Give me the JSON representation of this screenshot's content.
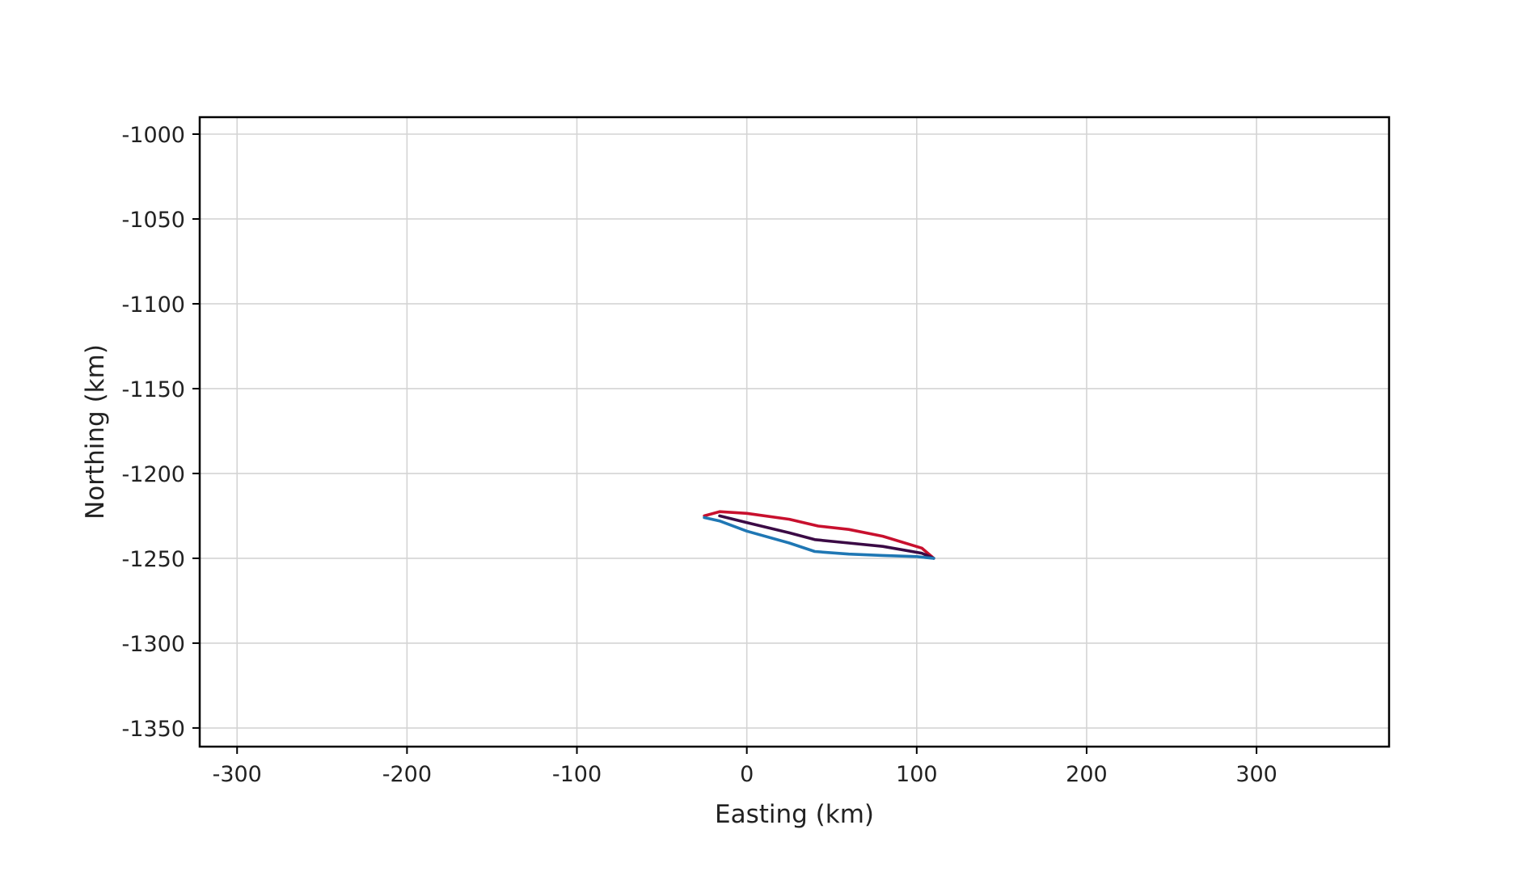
{
  "chart_data": {
    "type": "line",
    "title": "",
    "xlabel": "Easting (km)",
    "ylabel": "Northing (km)",
    "xlim": [
      -322,
      378
    ],
    "ylim": [
      -1361,
      -990
    ],
    "xticks": [
      -300,
      -200,
      -100,
      0,
      100,
      200,
      300
    ],
    "xtick_labels": [
      "-300",
      "-200",
      "-100",
      "0",
      "100",
      "200",
      "300"
    ],
    "yticks": [
      -1000,
      -1050,
      -1100,
      -1150,
      -1200,
      -1250,
      -1300,
      -1350
    ],
    "ytick_labels": [
      "-1000",
      "-1050",
      "-1100",
      "-1150",
      "-1200",
      "-1250",
      "-1300",
      "-1350"
    ],
    "grid": true,
    "legend": "none",
    "series": [
      {
        "color": "#c8102e",
        "points": [
          [
            -25,
            -1225
          ],
          [
            -16,
            -1222.5
          ],
          [
            0,
            -1223.5
          ],
          [
            25,
            -1227
          ],
          [
            42,
            -1231
          ],
          [
            60,
            -1233
          ],
          [
            80,
            -1237
          ],
          [
            103,
            -1244
          ],
          [
            110,
            -1250
          ]
        ]
      },
      {
        "color": "#3b0a45",
        "points": [
          [
            -16,
            -1225
          ],
          [
            0,
            -1229
          ],
          [
            25,
            -1235
          ],
          [
            40,
            -1239
          ],
          [
            60,
            -1241
          ],
          [
            80,
            -1243
          ],
          [
            103,
            -1247
          ],
          [
            110,
            -1250
          ]
        ]
      },
      {
        "color": "#1f77b4",
        "points": [
          [
            -25,
            -1226
          ],
          [
            -16,
            -1228
          ],
          [
            0,
            -1234
          ],
          [
            25,
            -1241
          ],
          [
            40,
            -1246
          ],
          [
            60,
            -1247.5
          ],
          [
            80,
            -1248.3
          ],
          [
            100,
            -1249
          ],
          [
            105,
            -1249.5
          ],
          [
            110,
            -1250
          ]
        ]
      }
    ]
  }
}
